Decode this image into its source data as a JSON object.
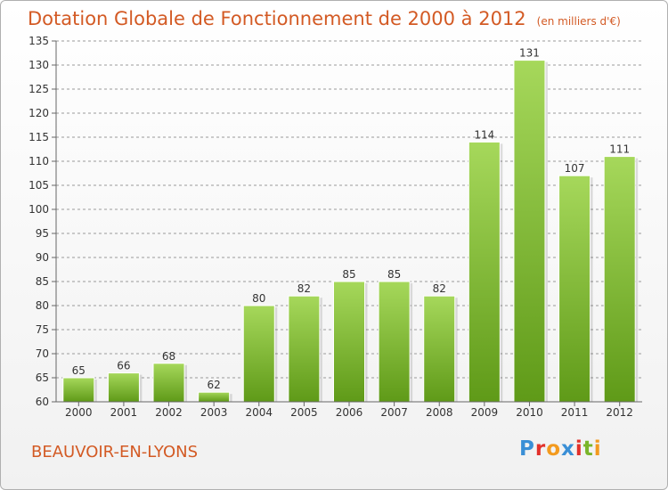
{
  "header": {
    "title": "Dotation Globale de Fonctionnement de 2000 à 2012",
    "unit": "(en milliers d'€)"
  },
  "footer": {
    "commune": "BEAUVOIR-EN-LYONS",
    "logo_text": "Proxiti"
  },
  "colors": {
    "title": "#d35a24",
    "bar_top": "#a6d85b",
    "bar_bottom": "#5f9a18",
    "grid": "#8a8a8a"
  },
  "chart_data": {
    "type": "bar",
    "title": "Dotation Globale de Fonctionnement de 2000 à 2012",
    "subtitle": "(en milliers d'€)",
    "xlabel": "",
    "ylabel": "",
    "categories": [
      "2000",
      "2001",
      "2002",
      "2003",
      "2004",
      "2005",
      "2006",
      "2007",
      "2008",
      "2009",
      "2010",
      "2011",
      "2012"
    ],
    "values": [
      65,
      66,
      68,
      62,
      80,
      82,
      85,
      85,
      82,
      114,
      131,
      107,
      111
    ],
    "ylim": [
      60,
      135
    ],
    "yticks": [
      60,
      65,
      70,
      75,
      80,
      85,
      90,
      95,
      100,
      105,
      110,
      115,
      120,
      125,
      130,
      135
    ],
    "grid": true,
    "data_labels": true
  }
}
